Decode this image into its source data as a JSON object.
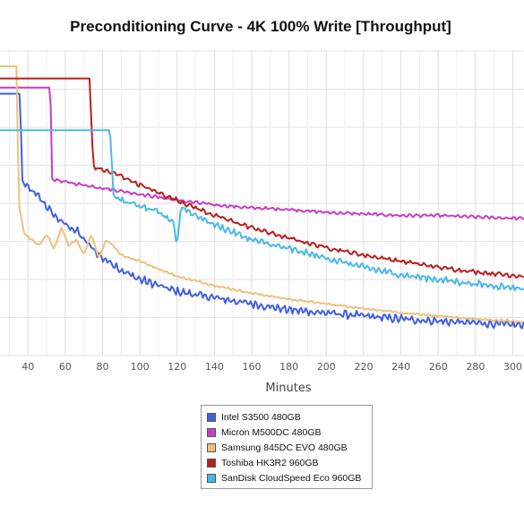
{
  "chart_data": {
    "type": "line",
    "title": "Preconditioning Curve - 4K 100% Write [Throughput]",
    "xlabel": "Minutes",
    "ylabel": "",
    "x_ticks": [
      40,
      60,
      80,
      100,
      120,
      140,
      160,
      180,
      200,
      220,
      240,
      260,
      280,
      300
    ],
    "xlim": [
      25,
      306
    ],
    "ylim": [
      0,
      100
    ],
    "grid": true,
    "legend_position": "bottom",
    "series": [
      {
        "name": "Intel S3500 480GB",
        "color": "#4060E0",
        "noise": 1.6,
        "x": [
          25,
          36,
          36.5,
          40,
          46,
          50,
          54,
          60,
          66,
          70,
          75,
          80,
          86,
          90,
          100,
          110,
          120,
          130,
          140,
          160,
          180,
          200,
          220,
          240,
          260,
          280,
          306
        ],
        "y": [
          86,
          86,
          58,
          55,
          52,
          49,
          46,
          43,
          41,
          38,
          35,
          32,
          30,
          28,
          25,
          23,
          21,
          20,
          19,
          17,
          15,
          14,
          13,
          12,
          11.3,
          10.7,
          10
        ]
      },
      {
        "name": "Micron M500DC 480GB",
        "color": "#C83CC8",
        "noise": 0.6,
        "x": [
          25,
          52,
          53,
          60,
          80,
          100,
          120,
          140,
          160,
          180,
          200,
          220,
          240,
          260,
          280,
          306
        ],
        "y": [
          88,
          88,
          58,
          57,
          55,
          53,
          51,
          49.5,
          48.5,
          48,
          47,
          46.5,
          46,
          46,
          45.5,
          45
        ]
      },
      {
        "name": "Samsung 845DC EVO 480GB",
        "color": "#F0C07A",
        "noise": 0.4,
        "x": [
          25,
          34,
          35,
          38,
          42,
          46,
          50,
          54,
          58,
          62,
          66,
          70,
          74,
          78,
          82,
          86,
          90,
          100,
          120,
          140,
          160,
          180,
          200,
          220,
          240,
          260,
          280,
          306
        ],
        "y": [
          95,
          95,
          50,
          40,
          38,
          36,
          40,
          35,
          42,
          36,
          38,
          33,
          40,
          32,
          38,
          36,
          33,
          31,
          26,
          23,
          20.5,
          18.5,
          17,
          15.5,
          14,
          13,
          12,
          11
        ]
      },
      {
        "name": "Toshiba HK3R2 960GB",
        "color": "#BB1E1E",
        "noise": 0.9,
        "x": [
          25,
          73,
          75,
          80,
          90,
          100,
          120,
          140,
          160,
          180,
          200,
          220,
          240,
          260,
          280,
          306
        ],
        "y": [
          91,
          91,
          62,
          61,
          59,
          56,
          51,
          46,
          42,
          38.5,
          35.5,
          33,
          31,
          29,
          27.5,
          26
        ]
      },
      {
        "name": "SanDisk CloudSpeed Eco 960GB",
        "color": "#48B8EC",
        "noise": 1.3,
        "x": [
          25,
          84,
          86,
          90,
          100,
          110,
          118,
          120,
          122,
          130,
          140,
          160,
          180,
          200,
          220,
          240,
          260,
          280,
          306
        ],
        "y": [
          74,
          74,
          52,
          51,
          49,
          47,
          44,
          36,
          49,
          46,
          43,
          38,
          35,
          32,
          29,
          26.5,
          25,
          23.5,
          22
        ]
      }
    ]
  }
}
